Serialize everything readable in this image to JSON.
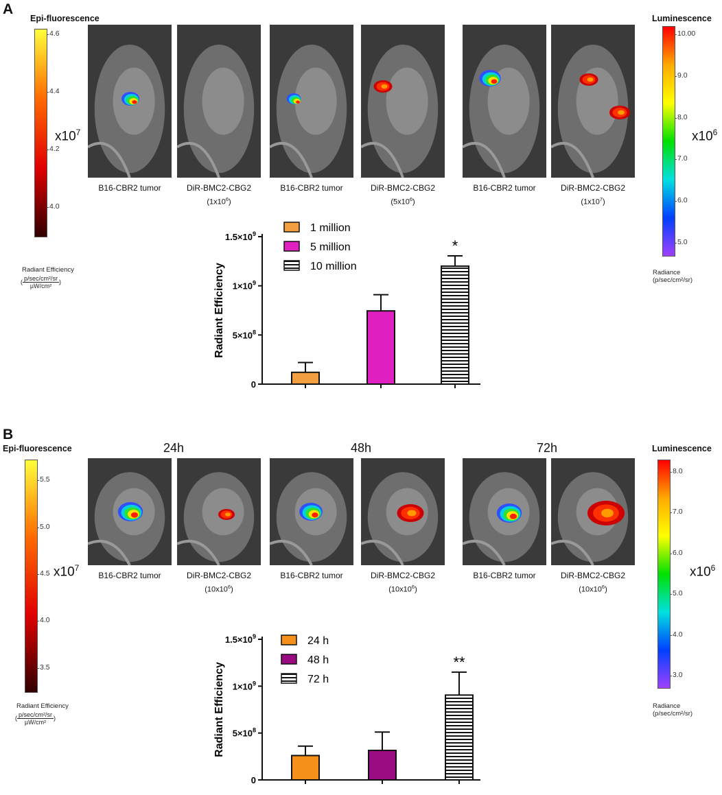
{
  "panel_a": {
    "letter": "A",
    "left_scale": {
      "title": "Epi-fluorescence",
      "ticks": [
        "4.6",
        "4.4",
        "4.2",
        "4.0"
      ],
      "tick_values": [
        4.6,
        4.4,
        4.2,
        4.0
      ],
      "range": [
        3.9,
        4.62
      ],
      "multiplier_base": "x10",
      "multiplier_exp": "7",
      "unit_label": "Radiant Efficiency",
      "unit_num": "p/sec/cm²/sr",
      "unit_den": "µW/cm²",
      "colors": [
        "#ffff3c",
        "#ff6a00",
        "#e00000",
        "#300000"
      ]
    },
    "right_scale": {
      "title": "Luminescence",
      "ticks": [
        "10.00",
        "9.0",
        "8.0",
        "7.0",
        "6.0",
        "5.0"
      ],
      "tick_values": [
        10.0,
        9.0,
        8.0,
        7.0,
        6.0,
        5.0
      ],
      "range": [
        4.7,
        10.2
      ],
      "multiplier_base": "x10",
      "multiplier_exp": "6",
      "unit_label": "Radiance",
      "unit_sub": "(p/sec/cm²/sr)",
      "colors": [
        "#ff0000",
        "#ffaa00",
        "#ffff00",
        "#00e000",
        "#00e0e0",
        "#0040ff",
        "#a040ff"
      ]
    },
    "images": [
      {
        "label": "B16-CBR2 tumor",
        "sub_pre": "",
        "sub_exp": "",
        "sub_post": ""
      },
      {
        "label": "DiR-BMC2-CBG2",
        "sub_pre": "(1x10",
        "sub_exp": "6",
        "sub_post": ")"
      },
      {
        "label": "B16-CBR2 tumor",
        "sub_pre": "",
        "sub_exp": "",
        "sub_post": ""
      },
      {
        "label": "DiR-BMC2-CBG2",
        "sub_pre": "(5x10",
        "sub_exp": "6",
        "sub_post": ")"
      },
      {
        "label": "B16-CBR2 tumor",
        "sub_pre": "",
        "sub_exp": "",
        "sub_post": ""
      },
      {
        "label": "DiR-BMC2-CBG2",
        "sub_pre": "(1x10",
        "sub_exp": "7",
        "sub_post": ")"
      }
    ]
  },
  "panel_b": {
    "letter": "B",
    "times": [
      "24h",
      "48h",
      "72h"
    ],
    "left_scale": {
      "title": "Epi-fluorescence",
      "ticks": [
        "5.5",
        "5.0",
        "4.5",
        "4.0",
        "3.5"
      ],
      "tick_values": [
        5.5,
        5.0,
        4.5,
        4.0,
        3.5
      ],
      "range": [
        3.25,
        5.72
      ],
      "multiplier_base": "x10",
      "multiplier_exp": "7",
      "unit_label": "Radiant Efficiency",
      "unit_num": "p/sec/cm²/sr",
      "unit_den": "µW/cm²",
      "colors": [
        "#ffff3c",
        "#ff6a00",
        "#e00000",
        "#300000"
      ]
    },
    "right_scale": {
      "title": "Luminescence",
      "ticks": [
        "8.0",
        "7.0",
        "6.0",
        "5.0",
        "4.0",
        "3.0"
      ],
      "tick_values": [
        8.0,
        7.0,
        6.0,
        5.0,
        4.0,
        3.0
      ],
      "range": [
        2.72,
        8.3
      ],
      "multiplier_base": "x10",
      "multiplier_exp": "6",
      "unit_label": "Radiance",
      "unit_sub": "(p/sec/cm²/sr)",
      "colors": [
        "#ff0000",
        "#ffaa00",
        "#ffff00",
        "#00e000",
        "#00e0e0",
        "#0040ff",
        "#a040ff"
      ]
    },
    "images": [
      {
        "label": "B16-CBR2 tumor",
        "sub_pre": "",
        "sub_exp": "",
        "sub_post": ""
      },
      {
        "label": "DiR-BMC2-CBG2",
        "sub_pre": "(10x10",
        "sub_exp": "6",
        "sub_post": ")"
      },
      {
        "label": "B16-CBR2 tumor",
        "sub_pre": "",
        "sub_exp": "",
        "sub_post": ""
      },
      {
        "label": "DiR-BMC2-CBG2",
        "sub_pre": "(10x10",
        "sub_exp": "6",
        "sub_post": ")"
      },
      {
        "label": "B16-CBR2 tumor",
        "sub_pre": "",
        "sub_exp": "",
        "sub_post": ""
      },
      {
        "label": "DiR-BMC2-CBG2",
        "sub_pre": "(10x10",
        "sub_exp": "6",
        "sub_post": ")"
      }
    ]
  },
  "chart_data": [
    {
      "type": "bar",
      "id": "A",
      "ylabel": "Radiant Efficiency",
      "ylim": [
        0,
        1500000000
      ],
      "yticks": [
        0,
        500000000,
        1000000000,
        1500000000
      ],
      "ytick_labels": [
        {
          "base": "0",
          "exp": ""
        },
        {
          "base": "5×10",
          "exp": "8"
        },
        {
          "base": "1×10",
          "exp": "9"
        },
        {
          "base": "1.5×10",
          "exp": "9"
        }
      ],
      "categories": [
        "1 million",
        "5 million",
        "10 million"
      ],
      "values": [
        120000000,
        745000000,
        1200000000
      ],
      "errors": [
        100000000,
        165000000,
        105000000
      ],
      "colors": [
        "#f5a040",
        "#e020c0",
        "#ffffff"
      ],
      "patterns": [
        "solid",
        "solid",
        "hstripes"
      ],
      "annotations": [
        "",
        "",
        "*"
      ],
      "legend": [
        "1 million",
        "5 million",
        "10 million"
      ],
      "legend_position": "top-left"
    },
    {
      "type": "bar",
      "id": "B",
      "ylabel": "Radiant Efficiency",
      "ylim": [
        0,
        1500000000
      ],
      "yticks": [
        0,
        500000000,
        1000000000,
        1500000000
      ],
      "ytick_labels": [
        {
          "base": "0",
          "exp": ""
        },
        {
          "base": "5×10",
          "exp": "8"
        },
        {
          "base": "1×10",
          "exp": "9"
        },
        {
          "base": "1.5×10",
          "exp": "9"
        }
      ],
      "categories": [
        "24 h",
        "48 h",
        "72 h"
      ],
      "values": [
        260000000,
        315000000,
        905000000
      ],
      "errors": [
        100000000,
        195000000,
        245000000
      ],
      "colors": [
        "#f5901a",
        "#9a0a80",
        "#ffffff"
      ],
      "patterns": [
        "solid",
        "solid",
        "hstripes"
      ],
      "annotations": [
        "",
        "",
        "**"
      ],
      "legend": [
        "24 h",
        "48 h",
        "72 h"
      ],
      "legend_position": "top-left"
    }
  ]
}
